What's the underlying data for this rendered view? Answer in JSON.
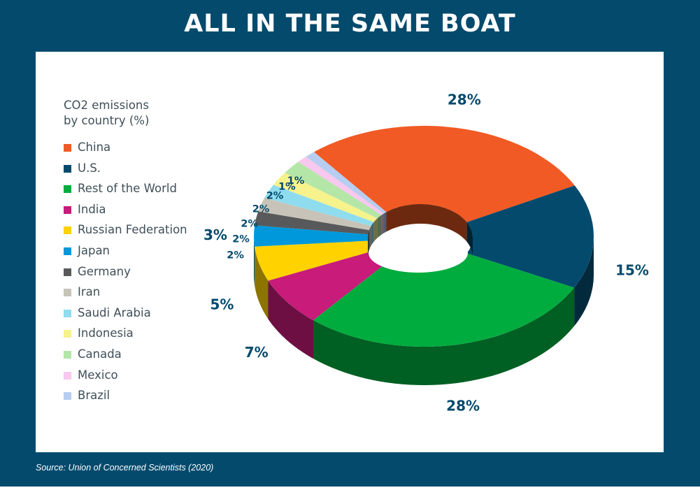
{
  "title": "ALL IN THE SAME BOAT",
  "source": "Source: Union of Concerned Scientists (2020)",
  "chart_data": {
    "type": "pie",
    "legend_title": "CO2 emissions\nby country (%)",
    "legend_position": "left",
    "slices": [
      {
        "label": "China",
        "value": 28,
        "display": "28%",
        "color": "#f15a24"
      },
      {
        "label": "U.S.",
        "value": 15,
        "display": "15%",
        "color": "#034a6d"
      },
      {
        "label": "Rest of the World",
        "value": 28,
        "display": "28%",
        "color": "#00ac3e"
      },
      {
        "label": "India",
        "value": 7,
        "display": "7%",
        "color": "#c81b7a"
      },
      {
        "label": "Russian Federation",
        "value": 5,
        "display": "5%",
        "color": "#ffd200"
      },
      {
        "label": "Japan",
        "value": 3,
        "display": "3%",
        "color": "#0098da"
      },
      {
        "label": "Germany",
        "value": 2,
        "display": "2%",
        "color": "#58595b"
      },
      {
        "label": "Iran",
        "value": 2,
        "display": "2%",
        "color": "#c7c3b8"
      },
      {
        "label": "Saudi Arabia",
        "value": 2,
        "display": "2%",
        "color": "#8fdcef"
      },
      {
        "label": "Indonesia",
        "value": 2,
        "display": "2%",
        "color": "#f6f28c"
      },
      {
        "label": "Canada",
        "value": 2,
        "display": "2%",
        "color": "#b4e6a8"
      },
      {
        "label": "Mexico",
        "value": 1,
        "display": "1%",
        "color": "#f8c8ef"
      },
      {
        "label": "Brazil",
        "value": 1,
        "display": "1%",
        "color": "#b7cdf1"
      }
    ]
  }
}
